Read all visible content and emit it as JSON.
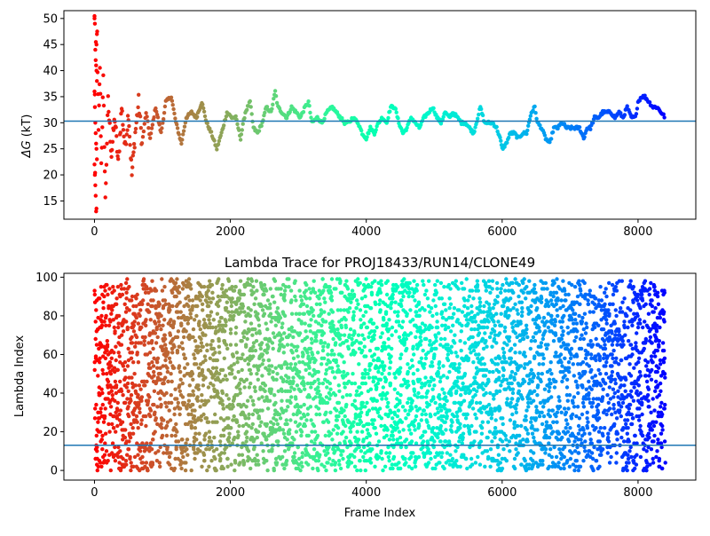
{
  "chart_data": [
    {
      "type": "scatter",
      "title": "",
      "xlabel": "",
      "ylabel": "ΔG (kT)",
      "ylabel_symbol": "ΔG",
      "ylabel_unit": "(kT)",
      "xlim": [
        -450,
        8850
      ],
      "ylim": [
        11.5,
        51.5
      ],
      "xticks": [
        0,
        2000,
        4000,
        6000,
        8000
      ],
      "xtick_labels": [
        "0",
        "2000",
        "4000",
        "6000",
        "8000"
      ],
      "yticks": [
        15,
        20,
        25,
        30,
        35,
        40,
        45,
        50
      ],
      "ytick_labels": [
        "15",
        "20",
        "25",
        "30",
        "35",
        "40",
        "45",
        "50"
      ],
      "hline": 30.3,
      "hline_color": "#1f77b4",
      "colormap": "rainbow_r",
      "frame_max": 8400,
      "trace_points": [
        [
          0,
          50
        ],
        [
          5,
          36
        ],
        [
          10,
          20
        ],
        [
          20,
          44
        ],
        [
          30,
          13
        ],
        [
          40,
          47
        ],
        [
          60,
          28
        ],
        [
          80,
          41
        ],
        [
          100,
          22
        ],
        [
          130,
          38
        ],
        [
          160,
          15
        ],
        [
          200,
          34
        ],
        [
          250,
          24
        ],
        [
          300,
          31
        ],
        [
          350,
          22
        ],
        [
          400,
          33
        ],
        [
          450,
          25
        ],
        [
          500,
          32
        ],
        [
          550,
          20
        ],
        [
          600,
          28
        ],
        [
          650,
          34
        ],
        [
          700,
          26
        ],
        [
          760,
          32
        ],
        [
          820,
          27
        ],
        [
          900,
          33
        ],
        [
          980,
          28
        ],
        [
          1050,
          34
        ],
        [
          1130,
          35
        ],
        [
          1200,
          30
        ],
        [
          1280,
          26
        ],
        [
          1350,
          31
        ],
        [
          1430,
          32
        ],
        [
          1500,
          31
        ],
        [
          1580,
          34
        ],
        [
          1650,
          30
        ],
        [
          1720,
          28
        ],
        [
          1800,
          25
        ],
        [
          1870,
          28
        ],
        [
          1950,
          32
        ],
        [
          2020,
          31
        ],
        [
          2080,
          31
        ],
        [
          2150,
          27
        ],
        [
          2220,
          32
        ],
        [
          2290,
          34
        ],
        [
          2340,
          29
        ],
        [
          2400,
          28
        ],
        [
          2470,
          30
        ],
        [
          2530,
          33
        ],
        [
          2600,
          32
        ],
        [
          2660,
          36
        ],
        [
          2700,
          33
        ],
        [
          2760,
          32
        ],
        [
          2830,
          31
        ],
        [
          2900,
          33
        ],
        [
          2970,
          32
        ],
        [
          3030,
          31
        ],
        [
          3100,
          33
        ],
        [
          3150,
          34
        ],
        [
          3200,
          30
        ],
        [
          3280,
          31
        ],
        [
          3350,
          30
        ],
        [
          3420,
          32
        ],
        [
          3500,
          33
        ],
        [
          3560,
          32
        ],
        [
          3620,
          31
        ],
        [
          3680,
          30
        ],
        [
          3750,
          30
        ],
        [
          3800,
          31
        ],
        [
          3880,
          30
        ],
        [
          3940,
          28
        ],
        [
          4000,
          27
        ],
        [
          4060,
          29
        ],
        [
          4120,
          28
        ],
        [
          4180,
          30
        ],
        [
          4240,
          31
        ],
        [
          4300,
          30
        ],
        [
          4360,
          33
        ],
        [
          4420,
          33
        ],
        [
          4480,
          30
        ],
        [
          4540,
          28
        ],
        [
          4600,
          29
        ],
        [
          4660,
          31
        ],
        [
          4720,
          30
        ],
        [
          4780,
          29
        ],
        [
          4850,
          31
        ],
        [
          4920,
          32
        ],
        [
          4980,
          33
        ],
        [
          5040,
          31
        ],
        [
          5100,
          30
        ],
        [
          5160,
          32
        ],
        [
          5220,
          31
        ],
        [
          5280,
          32
        ],
        [
          5340,
          31
        ],
        [
          5400,
          30
        ],
        [
          5460,
          30
        ],
        [
          5520,
          29
        ],
        [
          5580,
          28
        ],
        [
          5640,
          31
        ],
        [
          5680,
          33
        ],
        [
          5740,
          30
        ],
        [
          5800,
          30
        ],
        [
          5860,
          30
        ],
        [
          5920,
          29
        ],
        [
          5970,
          27
        ],
        [
          6000,
          25
        ],
        [
          6060,
          26
        ],
        [
          6120,
          28
        ],
        [
          6180,
          28
        ],
        [
          6240,
          27
        ],
        [
          6300,
          28
        ],
        [
          6360,
          28
        ],
        [
          6430,
          32
        ],
        [
          6480,
          33
        ],
        [
          6520,
          30
        ],
        [
          6580,
          29
        ],
        [
          6640,
          27
        ],
        [
          6700,
          26
        ],
        [
          6760,
          29
        ],
        [
          6820,
          29
        ],
        [
          6880,
          30
        ],
        [
          6950,
          29
        ],
        [
          7020,
          29
        ],
        [
          7080,
          29
        ],
        [
          7140,
          29
        ],
        [
          7200,
          27
        ],
        [
          7250,
          29
        ],
        [
          7300,
          29
        ],
        [
          7360,
          31
        ],
        [
          7420,
          31
        ],
        [
          7480,
          32
        ],
        [
          7540,
          32
        ],
        [
          7600,
          32
        ],
        [
          7660,
          31
        ],
        [
          7720,
          32
        ],
        [
          7780,
          31
        ],
        [
          7840,
          33
        ],
        [
          7900,
          31
        ],
        [
          7960,
          31
        ],
        [
          8000,
          34
        ],
        [
          8050,
          35
        ],
        [
          8100,
          35
        ],
        [
          8160,
          34
        ],
        [
          8220,
          33
        ],
        [
          8280,
          33
        ],
        [
          8340,
          32
        ],
        [
          8400,
          31
        ]
      ]
    },
    {
      "type": "scatter",
      "title": "Lambda Trace for PROJ18433/RUN14/CLONE49",
      "xlabel": "Frame Index",
      "ylabel": "Lambda Index",
      "xlim": [
        -450,
        8850
      ],
      "ylim": [
        -5,
        102
      ],
      "xticks": [
        0,
        2000,
        4000,
        6000,
        8000
      ],
      "xtick_labels": [
        "0",
        "2000",
        "4000",
        "6000",
        "8000"
      ],
      "yticks": [
        0,
        20,
        40,
        60,
        80,
        100
      ],
      "ytick_labels": [
        "0",
        "20",
        "40",
        "60",
        "80",
        "100"
      ],
      "hline": 13,
      "hline_color": "#1f77b4",
      "colormap": "rainbow_r",
      "frame_max": 8400,
      "lambda_range": [
        0,
        99
      ],
      "approx_point_count": 5000
    }
  ]
}
